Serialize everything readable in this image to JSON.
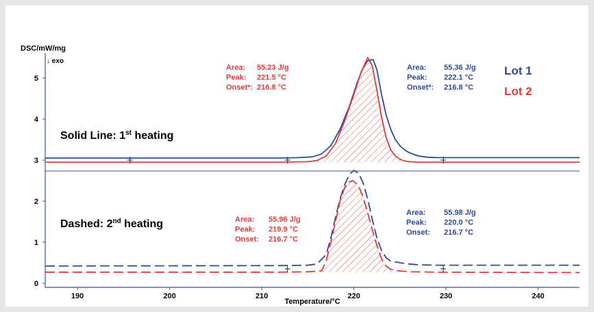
{
  "chart_data": {
    "type": "line",
    "ylabel": "DSC/mW/mg",
    "exo_label": "↓ exo",
    "xlabel": "Temperature/°C",
    "xlim": [
      186.5,
      244.5
    ],
    "ylim": [
      -0.1,
      5.6
    ],
    "x_ticks": [
      190,
      200,
      210,
      220,
      230,
      240
    ],
    "y_ticks": [
      0,
      1,
      2,
      3,
      4,
      5
    ],
    "grid": false,
    "colors": {
      "lot1": "#2b4a9a",
      "lot2": "#e23a3a",
      "axis": "#3a4fa8"
    },
    "legend": {
      "lot1": "Lot 1",
      "lot2": "Lot 2",
      "solid": {
        "text": "Solid Line: 1",
        "sup": "st",
        "tail": " heating"
      },
      "dashed": {
        "text": "Dashed: 2",
        "sup": "nd",
        "tail": " heating"
      }
    },
    "series": [
      {
        "name": "Lot 1",
        "heating": 1,
        "style": "solid",
        "color": "#2b4a9a",
        "x": [
          186.5,
          212.0,
          214.0,
          215.5,
          216.5,
          217.5,
          218.5,
          219.5,
          220.3,
          221.0,
          221.5,
          222.1,
          222.5,
          223.0,
          223.5,
          224.0,
          224.5,
          225.0,
          225.5,
          226.0,
          227.0,
          228.0,
          229.0,
          244.5
        ],
        "y": [
          3.05,
          3.05,
          3.06,
          3.08,
          3.15,
          3.35,
          3.75,
          4.3,
          4.85,
          5.25,
          5.42,
          5.45,
          5.2,
          4.6,
          4.1,
          3.75,
          3.5,
          3.35,
          3.25,
          3.18,
          3.1,
          3.07,
          3.06,
          3.06
        ]
      },
      {
        "name": "Lot 2",
        "heating": 1,
        "style": "solid",
        "color": "#e23a3a",
        "x": [
          186.5,
          212.0,
          215.0,
          216.0,
          217.0,
          218.0,
          219.0,
          220.0,
          220.8,
          221.5,
          222.0,
          222.5,
          223.0,
          223.5,
          224.0,
          224.5,
          225.0,
          225.5,
          226.0,
          227.0,
          229.0,
          244.5
        ],
        "y": [
          2.95,
          2.95,
          2.96,
          2.99,
          3.1,
          3.4,
          3.95,
          4.6,
          5.15,
          5.5,
          5.3,
          4.7,
          4.05,
          3.55,
          3.25,
          3.1,
          3.02,
          2.98,
          2.96,
          2.95,
          2.95,
          2.95
        ]
      },
      {
        "name": "Lot 1",
        "heating": 2,
        "style": "dashed",
        "color": "#2b4a9a",
        "x": [
          186.5,
          212.0,
          215.0,
          216.0,
          217.0,
          217.5,
          218.0,
          218.5,
          219.0,
          219.5,
          220.0,
          220.5,
          221.0,
          221.5,
          222.0,
          222.5,
          223.0,
          223.5,
          224.0,
          225.0,
          226.0,
          227.0,
          229.0,
          244.5
        ],
        "y": [
          0.42,
          0.43,
          0.44,
          0.47,
          0.7,
          1.1,
          1.6,
          2.05,
          2.4,
          2.65,
          2.75,
          2.68,
          2.45,
          2.05,
          1.55,
          1.1,
          0.8,
          0.62,
          0.54,
          0.5,
          0.47,
          0.45,
          0.44,
          0.44
        ]
      },
      {
        "name": "Lot 2",
        "heating": 2,
        "style": "dashed",
        "color": "#e23a3a",
        "x": [
          186.5,
          212.0,
          215.0,
          216.5,
          217.0,
          217.5,
          218.0,
          218.5,
          219.0,
          219.5,
          219.9,
          220.5,
          221.0,
          221.5,
          222.0,
          222.5,
          223.0,
          223.5,
          224.0,
          225.0,
          226.0,
          229.0,
          244.5
        ],
        "y": [
          0.27,
          0.27,
          0.28,
          0.3,
          0.55,
          1.0,
          1.5,
          2.0,
          2.33,
          2.47,
          2.5,
          2.38,
          2.1,
          1.72,
          1.3,
          0.92,
          0.6,
          0.42,
          0.34,
          0.3,
          0.28,
          0.27,
          0.26
        ]
      }
    ],
    "integration_markers": [
      {
        "x": 195.7,
        "heating": 1
      },
      {
        "x": 212.8,
        "heating": 1
      },
      {
        "x": 229.7,
        "heating": 1
      },
      {
        "x": 212.8,
        "heating": 2
      },
      {
        "x": 229.7,
        "heating": 2
      }
    ],
    "annotations": {
      "lot2_h1": {
        "color": "#e23a3a",
        "lines": [
          [
            "Area:",
            "55.23 J/g"
          ],
          [
            "Peak:",
            "221.5 °C"
          ],
          [
            "Onset*:",
            "216.8 °C"
          ]
        ]
      },
      "lot1_h1": {
        "color": "#2b4a9a",
        "lines": [
          [
            "Area:",
            "55.36 J/g"
          ],
          [
            "Peak:",
            "222.1 °C"
          ],
          [
            "Onset*:",
            "216.8 °C"
          ]
        ]
      },
      "lot2_h2": {
        "color": "#e23a3a",
        "lines": [
          [
            "Area:",
            "55.96 J/g"
          ],
          [
            "Peak:",
            "219.9 °C"
          ],
          [
            "Onset:",
            "216.7 °C"
          ]
        ]
      },
      "lot1_h2": {
        "color": "#2b4a9a",
        "lines": [
          [
            "Area:",
            "55.98 J/g"
          ],
          [
            "Peak:",
            "220.0 °C"
          ],
          [
            "Onset:",
            "216.7 °C"
          ]
        ]
      }
    }
  }
}
